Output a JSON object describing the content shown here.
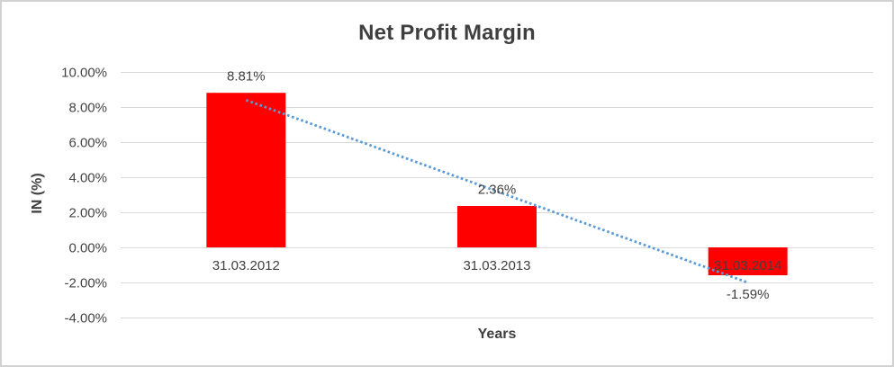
{
  "chart_data": {
    "type": "bar",
    "title": "Net Profit Margin",
    "xlabel": "Years",
    "ylabel": "IN (%)",
    "categories": [
      "31.03.2012",
      "31.03.2013",
      "31.03.2014"
    ],
    "values": [
      8.81,
      2.36,
      -1.59
    ],
    "data_labels": [
      "8.81%",
      "2.36%",
      "-1.59%"
    ],
    "yticks": [
      {
        "value": 10,
        "label": "10.00%"
      },
      {
        "value": 8,
        "label": "8.00%"
      },
      {
        "value": 6,
        "label": "6.00%"
      },
      {
        "value": 4,
        "label": "4.00%"
      },
      {
        "value": 2,
        "label": "2.00%"
      },
      {
        "value": 0,
        "label": "0.00%"
      },
      {
        "value": -2,
        "label": "-2.00%"
      },
      {
        "value": -4,
        "label": "-4.00%"
      }
    ],
    "ylim": [
      -4,
      10
    ],
    "grid": true,
    "legend": "none",
    "trendline": {
      "type": "linear",
      "style": "dotted"
    },
    "colors": {
      "bar": "#ff0000",
      "trendline": "#5b9bd5",
      "gridline": "#d9d9d9",
      "text": "#404040",
      "title_text": "#3f3f3f",
      "border": "#d2d2d2",
      "background": "#ffffff"
    }
  }
}
